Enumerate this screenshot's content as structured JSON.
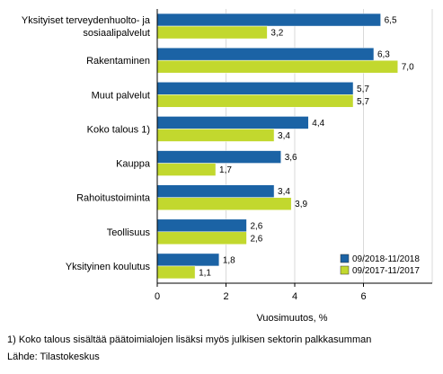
{
  "chart_data": {
    "type": "bar",
    "orientation": "horizontal",
    "categories": [
      [
        "Yksityiset terveydenhuolto- ja",
        "sosiaalipalvelut"
      ],
      [
        "Rakentaminen"
      ],
      [
        "Muut palvelut"
      ],
      [
        "Koko talous 1)"
      ],
      [
        "Kauppa"
      ],
      [
        "Rahoitustoiminta"
      ],
      [
        "Teollisuus"
      ],
      [
        "Yksityinen koulutus"
      ]
    ],
    "series": [
      {
        "name": "09/2018-11/2018",
        "color": "#1b63a5",
        "values": [
          6.5,
          6.3,
          5.7,
          4.4,
          3.6,
          3.4,
          2.6,
          1.8
        ],
        "labels": [
          "6,5",
          "6,3",
          "5,7",
          "4,4",
          "3,6",
          "3,4",
          "2,6",
          "1,8"
        ]
      },
      {
        "name": "09/2017-11/2017",
        "color": "#c2d82e",
        "values": [
          3.2,
          7.0,
          5.7,
          3.4,
          1.7,
          3.9,
          2.6,
          1.1
        ],
        "labels": [
          "3,2",
          "7,0",
          "5,7",
          "3,4",
          "1,7",
          "3,9",
          "2,6",
          "1,1"
        ]
      }
    ],
    "xlim": [
      0,
      8
    ],
    "xticks": [
      0,
      2,
      4,
      6
    ],
    "xtick_labels": [
      "0",
      "2",
      "4",
      "6"
    ],
    "xlabel": "Vuosimuutos, %",
    "ylabel": "",
    "title": "",
    "grid": "vertical",
    "legend_position": "bottom-right"
  },
  "footnote": "1) Koko talous sisältää päätoimialojen lisäksi myös julkisen sektorin palkkasumman",
  "source": "Lähde: Tilastokeskus"
}
